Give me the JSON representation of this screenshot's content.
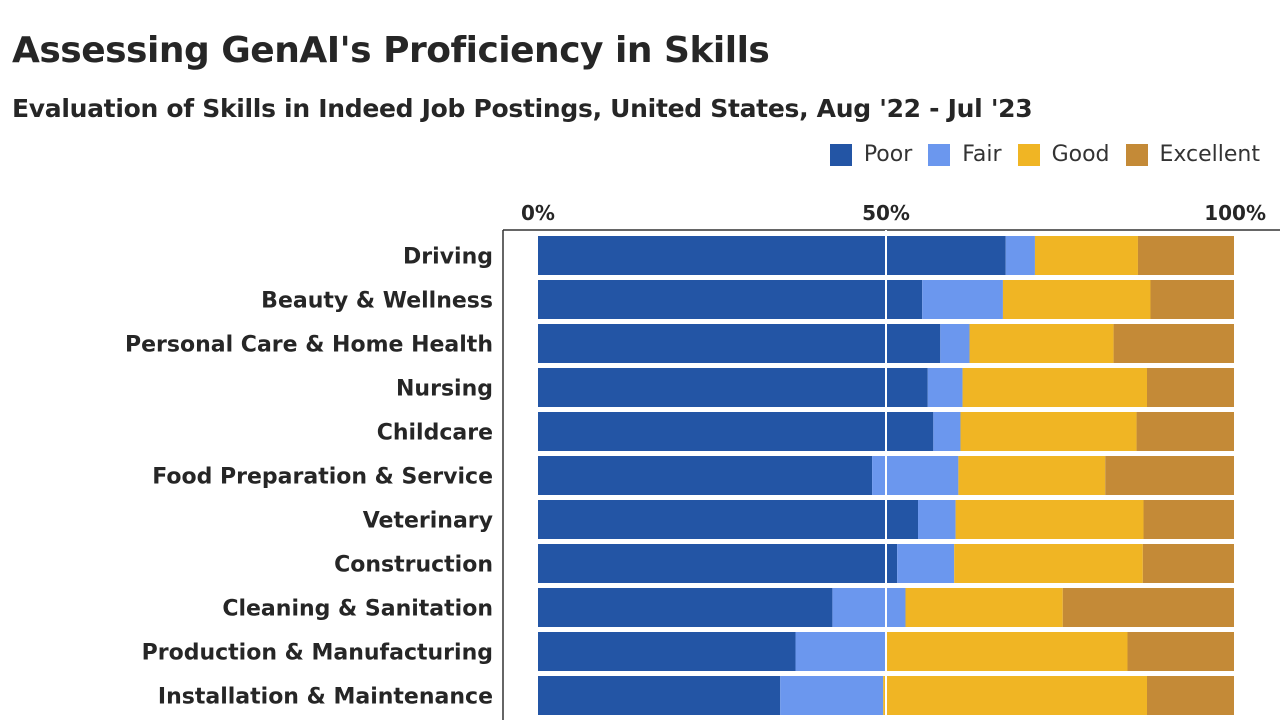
{
  "chart_data": {
    "type": "bar",
    "orientation": "horizontal",
    "stacked": true,
    "normalized": true,
    "title": "Assessing GenAI's Proficiency in Skills",
    "subtitle": "Evaluation of Skills in Indeed Job Postings, United States, Aug '22 - Jul '23",
    "xticks": [
      "0%",
      "50%",
      "100%"
    ],
    "xlim": [
      0,
      100
    ],
    "legend_position": "top-right",
    "categories": [
      "Driving",
      "Beauty & Wellness",
      "Personal Care & Home Health",
      "Nursing",
      "Childcare",
      "Food Preparation & Service",
      "Veterinary",
      "Construction",
      "Cleaning & Sanitation",
      "Production & Manufacturing",
      "Installation & Maintenance"
    ],
    "series": [
      {
        "name": "Poor",
        "color": "#2355a5",
        "values": [
          67.2,
          55.2,
          57.8,
          56.0,
          56.8,
          48.0,
          54.6,
          51.6,
          42.3,
          37.0,
          34.8
        ]
      },
      {
        "name": "Fair",
        "color": "#6b97ee",
        "values": [
          4.2,
          11.6,
          4.2,
          5.0,
          3.9,
          12.4,
          5.4,
          8.2,
          10.5,
          12.9,
          14.8
        ]
      },
      {
        "name": "Good",
        "color": "#f0b524",
        "values": [
          14.8,
          21.2,
          20.7,
          26.5,
          25.3,
          21.1,
          27.0,
          27.1,
          22.6,
          34.8,
          37.9
        ]
      },
      {
        "name": "Excellent",
        "color": "#c48a37",
        "values": [
          13.8,
          12.0,
          17.3,
          12.5,
          14.0,
          18.5,
          13.0,
          13.1,
          24.6,
          15.3,
          12.5
        ]
      }
    ]
  }
}
